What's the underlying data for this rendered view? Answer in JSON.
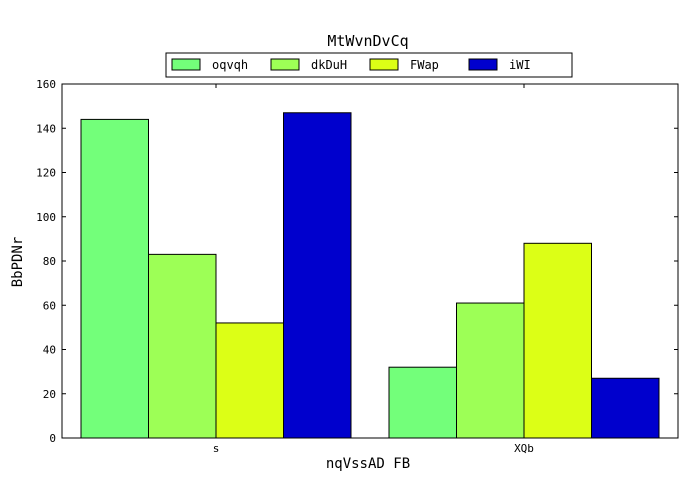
{
  "chart_data": {
    "type": "bar",
    "title": "MtWvnDvCq",
    "xlabel": "nqVssAD FB",
    "ylabel": "BbPDNr",
    "categories": [
      "s",
      "XQb"
    ],
    "ylim": [
      0,
      160
    ],
    "yticks": [
      0,
      20,
      40,
      60,
      80,
      100,
      120,
      140,
      160
    ],
    "grid": false,
    "legend_position": "top-center",
    "series": [
      {
        "name": "oqvqh",
        "color": "#73ff7a",
        "values": [
          144,
          32
        ]
      },
      {
        "name": "dkDuH",
        "color": "#9dff56",
        "values": [
          83,
          61
        ]
      },
      {
        "name": "FWap",
        "color": "#dcff16",
        "values": [
          52,
          88
        ]
      },
      {
        "name": "iWI",
        "color": "#0000cd",
        "values": [
          147,
          27
        ]
      }
    ]
  }
}
